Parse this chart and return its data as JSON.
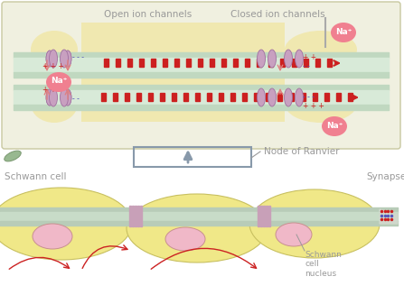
{
  "bg_color": "#ffffff",
  "top_panel_bg": "#f0f0e0",
  "top_panel_border": "#c8c8a0",
  "myelin_yellow": "#f0e8b0",
  "axon_outer": "#c0d8c0",
  "axon_inner": "#d8ead8",
  "channel_fill": "#c8a0c0",
  "channel_edge": "#a070a0",
  "na_fill": "#f08090",
  "na_text": "#ffffff",
  "red_dash": "#cc2020",
  "pink_arrow": "#e08080",
  "plus_red": "#cc2020",
  "minus_blue": "#5555bb",
  "label_color": "#999999",
  "schwann_yellow": "#f0e888",
  "schwann_border": "#c8c060",
  "schwann_light": "#e8dda0",
  "axon_bot_outer": "#b8ccb8",
  "axon_bot_inner": "#c8dcc8",
  "node_channel": "#c8a0b8",
  "nucleus_fill": "#f0b8c8",
  "nucleus_edge": "#c89090",
  "arrow_red": "#cc2222",
  "box_color": "#8899aa",
  "synapse_fill": "#d0d8cc",
  "green_leaf": "#98b890",
  "title_open": "Open ion channels",
  "title_closed": "Closed ion channels",
  "label_schwann": "Schwann cell",
  "label_node": "Node of Ranvier",
  "label_synapse": "Synapse",
  "label_nucleus": "Schwann\ncell\nnucleus"
}
